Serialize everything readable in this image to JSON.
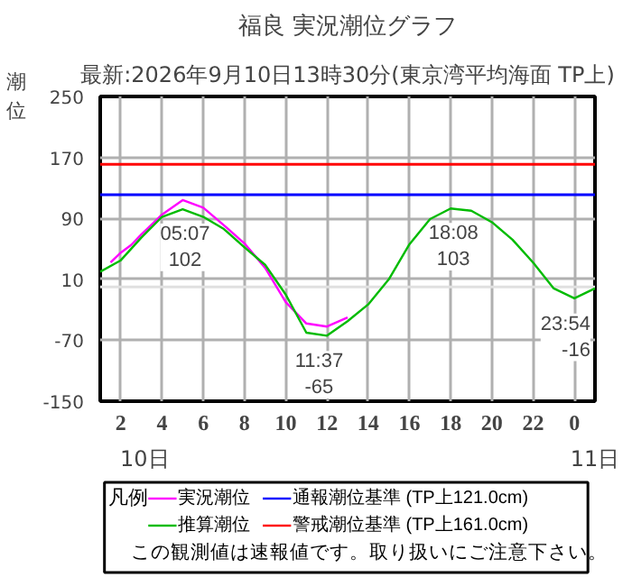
{
  "chart_data": {
    "type": "line",
    "title": "福良 実況潮位グラフ",
    "subtitle": "最新:2026年9月10日13時30分(東京湾平均海面 TP上)",
    "ylabel": "潮位",
    "legend_title": "凡例",
    "legend": "bottom",
    "grid": true,
    "marker": "none",
    "line_style": "solid",
    "xlim": [
      "2026-09-10T01:00",
      "2026-09-11T01:00"
    ],
    "ylim": [
      -150,
      250
    ],
    "xticks": [
      {
        "value": "2026-09-10T02:00",
        "label": "2"
      },
      {
        "value": "2026-09-10T04:00",
        "label": "4"
      },
      {
        "value": "2026-09-10T06:00",
        "label": "6"
      },
      {
        "value": "2026-09-10T08:00",
        "label": "8"
      },
      {
        "value": "2026-09-10T10:00",
        "label": "10"
      },
      {
        "value": "2026-09-10T12:00",
        "label": "12"
      },
      {
        "value": "2026-09-10T14:00",
        "label": "14"
      },
      {
        "value": "2026-09-10T16:00",
        "label": "16"
      },
      {
        "value": "2026-09-10T18:00",
        "label": "18"
      },
      {
        "value": "2026-09-10T20:00",
        "label": "20"
      },
      {
        "value": "2026-09-10T22:00",
        "label": "22"
      },
      {
        "value": "2026-09-11T00:00",
        "label": "0"
      }
    ],
    "yticks": [
      -150,
      -70,
      10,
      90,
      170,
      250
    ],
    "series": [
      {
        "name": "実況潮位",
        "color": "#ff00ff",
        "x": [
          "2026-09-10T01:30",
          "2026-09-10T02:00",
          "2026-09-10T02:30",
          "2026-09-10T03:00",
          "2026-09-10T04:00",
          "2026-09-10T05:00",
          "2026-09-10T06:00",
          "2026-09-10T07:00",
          "2026-09-10T08:00",
          "2026-09-10T09:00",
          "2026-09-10T10:00",
          "2026-09-10T11:00",
          "2026-09-10T12:00",
          "2026-09-10T12:30",
          "2026-09-10T13:00"
        ],
        "values": [
          32,
          45,
          55,
          69,
          95,
          114,
          104,
          81,
          57,
          25,
          -20,
          -48,
          -52,
          -46,
          -40
        ]
      },
      {
        "name": "推算潮位",
        "color": "#00bb00",
        "x": [
          "2026-09-10T01:00",
          "2026-09-10T02:00",
          "2026-09-10T03:00",
          "2026-09-10T04:00",
          "2026-09-10T05:00",
          "2026-09-10T06:00",
          "2026-09-10T07:00",
          "2026-09-10T08:00",
          "2026-09-10T09:00",
          "2026-09-10T10:00",
          "2026-09-10T11:00",
          "2026-09-10T12:00",
          "2026-09-10T13:00",
          "2026-09-10T14:00",
          "2026-09-10T15:00",
          "2026-09-10T16:00",
          "2026-09-10T17:00",
          "2026-09-10T18:00",
          "2026-09-10T19:00",
          "2026-09-10T20:00",
          "2026-09-10T21:00",
          "2026-09-10T22:00",
          "2026-09-10T23:00",
          "2026-09-11T00:00",
          "2026-09-11T01:00"
        ],
        "values": [
          20,
          35,
          65,
          92,
          102,
          92,
          76,
          52,
          29,
          -10,
          -60,
          -64,
          -45,
          -23,
          10,
          56,
          89,
          103,
          100,
          85,
          62,
          32,
          -2,
          -15,
          -2
        ]
      }
    ],
    "ref_lines": [
      {
        "axis": "y",
        "value": 121,
        "label": "通報潮位基準 (TP上121.0cm)",
        "color": "#0000ff"
      },
      {
        "axis": "y",
        "value": 161,
        "label": "警戒潮位基準 (TP上161.0cm)",
        "color": "#ff0000"
      },
      {
        "axis": "y",
        "value": 0,
        "color": "#e0e0e0"
      }
    ],
    "annotations": [
      {
        "text": "05:07\n102",
        "x": "2026-09-10T05:07",
        "y": 102
      },
      {
        "text": "11:37\n-65",
        "x": "2026-09-10T11:37",
        "y": -65
      },
      {
        "text": "18:08\n103",
        "x": "2026-09-10T18:08",
        "y": 103
      },
      {
        "text": "23:54\n-16",
        "x": "2026-09-10T23:54",
        "y": -16
      },
      "10日",
      "11日",
      "この観測値は速報値です。取り扱いにご注意下さい。"
    ]
  }
}
